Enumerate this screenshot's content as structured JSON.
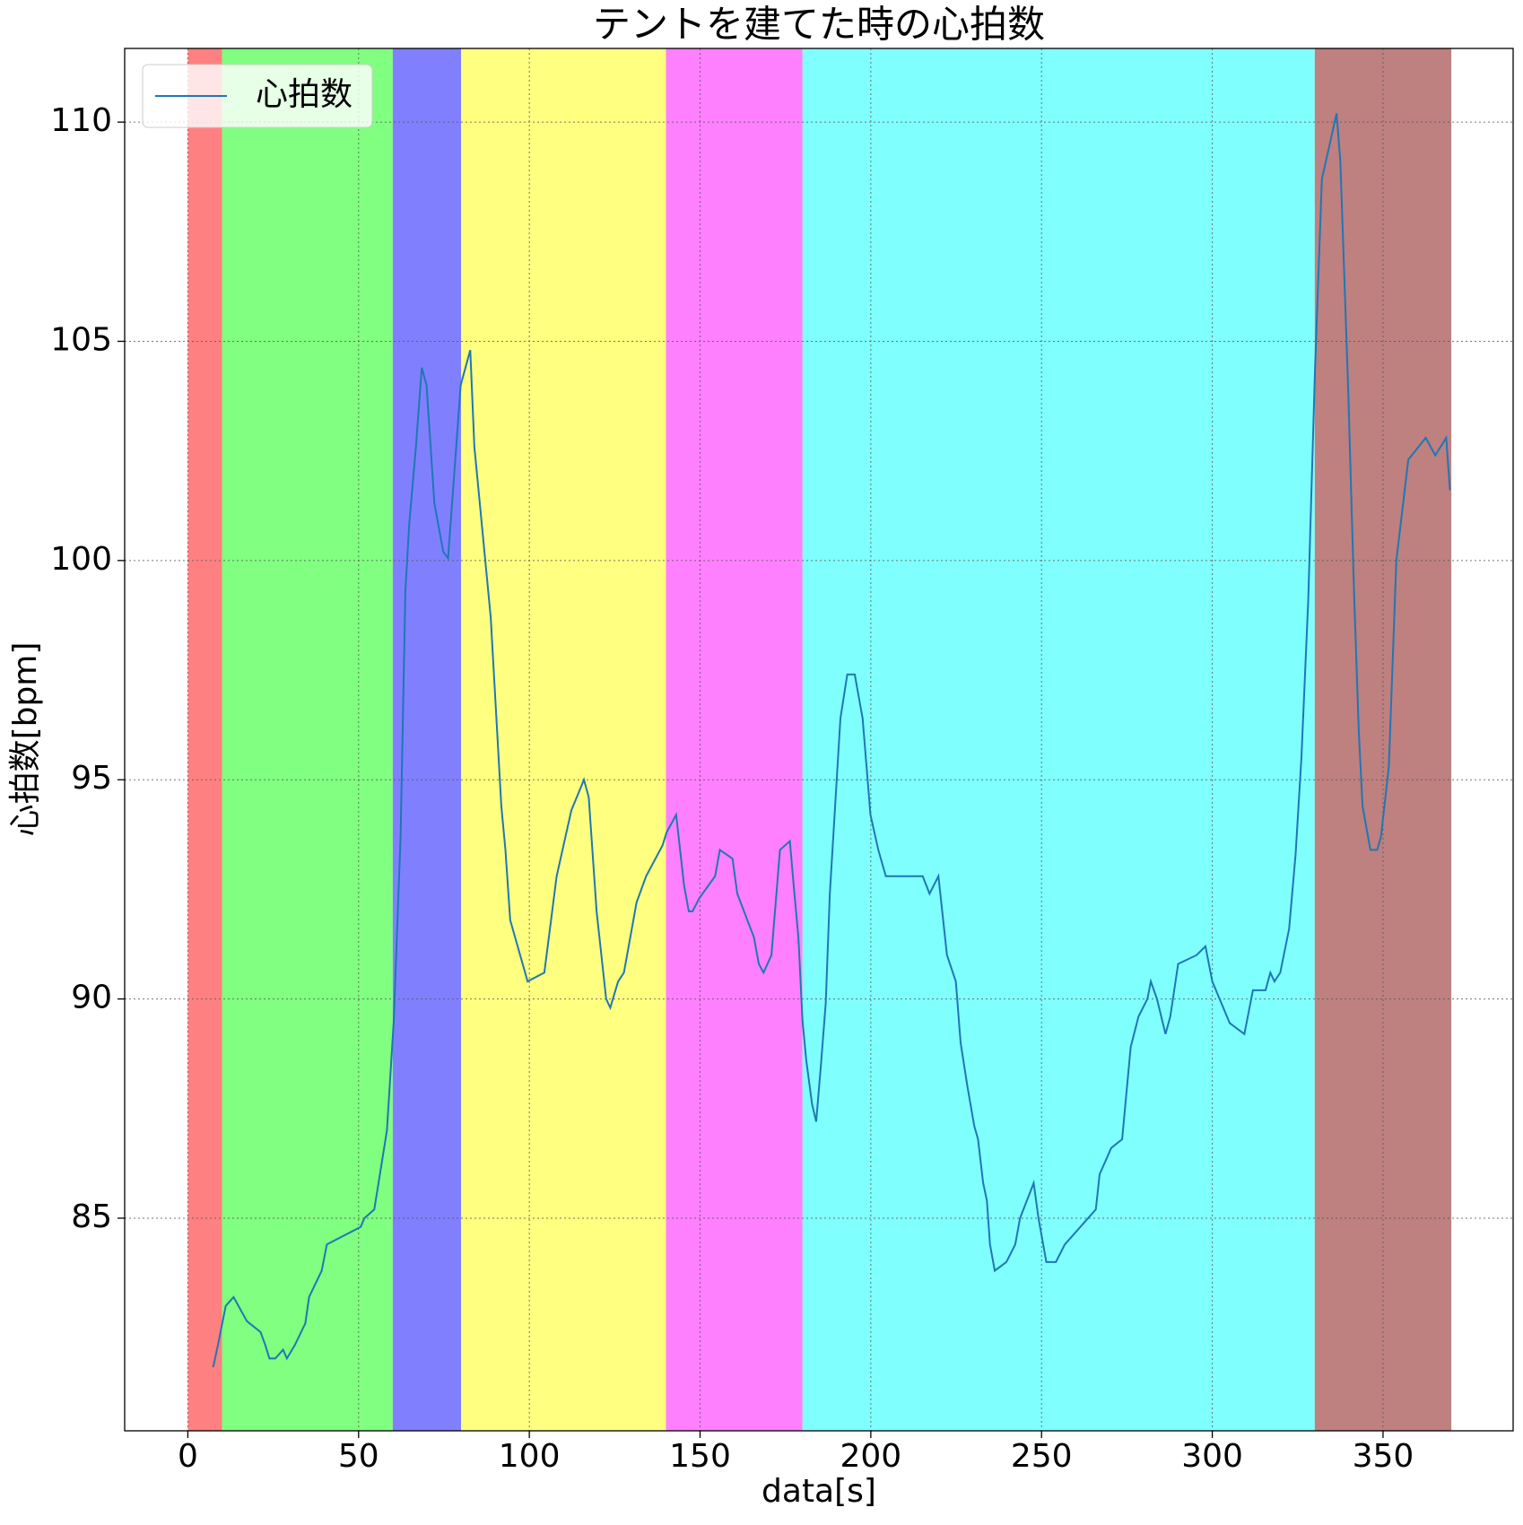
{
  "chart_data": {
    "type": "line",
    "title": "テントを建てた時の心拍数",
    "x_label": "data[s]",
    "y_label": "心拍数[bpm]",
    "xlim": [
      -18.5,
      388.1
    ],
    "ylim": [
      80.15,
      111.68
    ],
    "xticks": [
      0,
      50,
      100,
      150,
      200,
      250,
      300,
      350
    ],
    "yticks": [
      85,
      90,
      95,
      100,
      105,
      110
    ],
    "grid": true,
    "legend": "upper left",
    "spans": [
      {
        "x": [
          0,
          10
        ],
        "color": "#ff8080"
      },
      {
        "x": [
          10,
          60
        ],
        "color": "#80ff80"
      },
      {
        "x": [
          60,
          80
        ],
        "color": "#8080ff"
      },
      {
        "x": [
          80,
          140
        ],
        "color": "#ffff80"
      },
      {
        "x": [
          140,
          180
        ],
        "color": "#ff80ff"
      },
      {
        "x": [
          180,
          330
        ],
        "color": "#80ffff"
      },
      {
        "x": [
          330,
          370
        ],
        "color": "#bf8080"
      }
    ],
    "x": [
      7.4,
      8.8,
      11.1,
      13.4,
      17.3,
      21.3,
      22.7,
      23.9,
      25.6,
      27.9,
      29.0,
      31.3,
      34.4,
      35.5,
      39.2,
      40.7,
      50.6,
      51.7,
      54.6,
      58.3,
      60.3,
      62.3,
      63.7,
      64.8,
      66.8,
      68.5,
      69.9,
      72.2,
      74.8,
      76.2,
      79.9,
      82.7,
      83.9,
      88.7,
      91.8,
      93.0,
      94.4,
      99.5,
      104.4,
      108.0,
      112.3,
      116.0,
      117.4,
      119.7,
      122.5,
      123.7,
      126.0,
      127.7,
      131.4,
      134.2,
      139.0,
      140.2,
      143.0,
      145.3,
      146.7,
      147.8,
      149.8,
      154.4,
      155.8,
      159.5,
      160.9,
      165.8,
      167.2,
      168.6,
      170.9,
      173.4,
      176.3,
      177.4,
      178.8,
      180.0,
      181.1,
      182.8,
      184.0,
      185.4,
      186.8,
      188.0,
      191.1,
      193.1,
      195.3,
      197.6,
      199.9,
      202.2,
      204.4,
      215.2,
      217.2,
      219.8,
      222.3,
      224.9,
      226.3,
      228.3,
      230.3,
      231.4,
      232.9,
      234.0,
      234.9,
      236.3,
      239.7,
      242.3,
      243.7,
      245.7,
      247.7,
      249.1,
      251.4,
      254.2,
      256.8,
      265.9,
      267.0,
      270.4,
      273.6,
      276.1,
      278.4,
      281.0,
      282.0,
      283.8,
      286.3,
      287.7,
      290.0,
      295.4,
      298.0,
      300.0,
      305.1,
      309.4,
      311.9,
      315.6,
      317.0,
      318.2,
      319.9,
      322.5,
      324.4,
      326.1,
      328.1,
      330.1,
      332.1,
      334.4,
      336.4,
      337.5,
      339.8,
      341.5,
      342.9,
      344.0,
      346.3,
      348.3,
      349.4,
      351.7,
      353.9,
      357.4,
      362.5,
      365.3,
      368.5,
      369.6
    ],
    "series": [
      {
        "name": "心拍数",
        "color": "#1f77b4",
        "values": [
          81.6,
          82.1,
          83.0,
          83.2,
          82.65,
          82.4,
          82.1,
          81.8,
          81.8,
          82.0,
          81.8,
          82.1,
          82.6,
          83.2,
          83.8,
          84.4,
          84.8,
          85.0,
          85.2,
          87.0,
          89.5,
          93.7,
          99.3,
          100.8,
          102.6,
          104.4,
          104.0,
          101.3,
          100.2,
          100.05,
          104.0,
          104.8,
          102.6,
          98.7,
          94.4,
          93.4,
          91.8,
          90.4,
          90.6,
          92.8,
          94.3,
          95.0,
          94.6,
          92.0,
          90.0,
          89.8,
          90.4,
          90.6,
          92.2,
          92.8,
          93.5,
          93.8,
          94.2,
          92.6,
          92.0,
          92.0,
          92.3,
          92.8,
          93.4,
          93.2,
          92.4,
          91.4,
          90.8,
          90.6,
          91.0,
          93.4,
          93.6,
          92.6,
          91.4,
          89.5,
          88.6,
          87.6,
          87.2,
          88.5,
          89.9,
          92.4,
          96.4,
          97.4,
          97.4,
          96.4,
          94.2,
          93.4,
          92.8,
          92.8,
          92.4,
          92.8,
          91.0,
          90.4,
          89.0,
          88.0,
          87.1,
          86.8,
          85.8,
          85.4,
          84.4,
          83.8,
          84.0,
          84.4,
          85.0,
          85.4,
          85.8,
          85.0,
          84.0,
          84.0,
          84.4,
          85.2,
          86.0,
          86.6,
          86.8,
          88.9,
          89.6,
          90.0,
          90.4,
          90.0,
          89.2,
          89.6,
          90.8,
          91.0,
          91.2,
          90.4,
          89.45,
          89.2,
          90.2,
          90.2,
          90.6,
          90.4,
          90.6,
          91.6,
          93.3,
          95.5,
          99.1,
          104.4,
          108.7,
          109.5,
          110.2,
          109.1,
          103.9,
          99.3,
          96.1,
          94.4,
          93.4,
          93.4,
          93.7,
          95.3,
          100.0,
          102.3,
          102.8,
          102.4,
          102.8,
          101.6
        ]
      }
    ]
  }
}
